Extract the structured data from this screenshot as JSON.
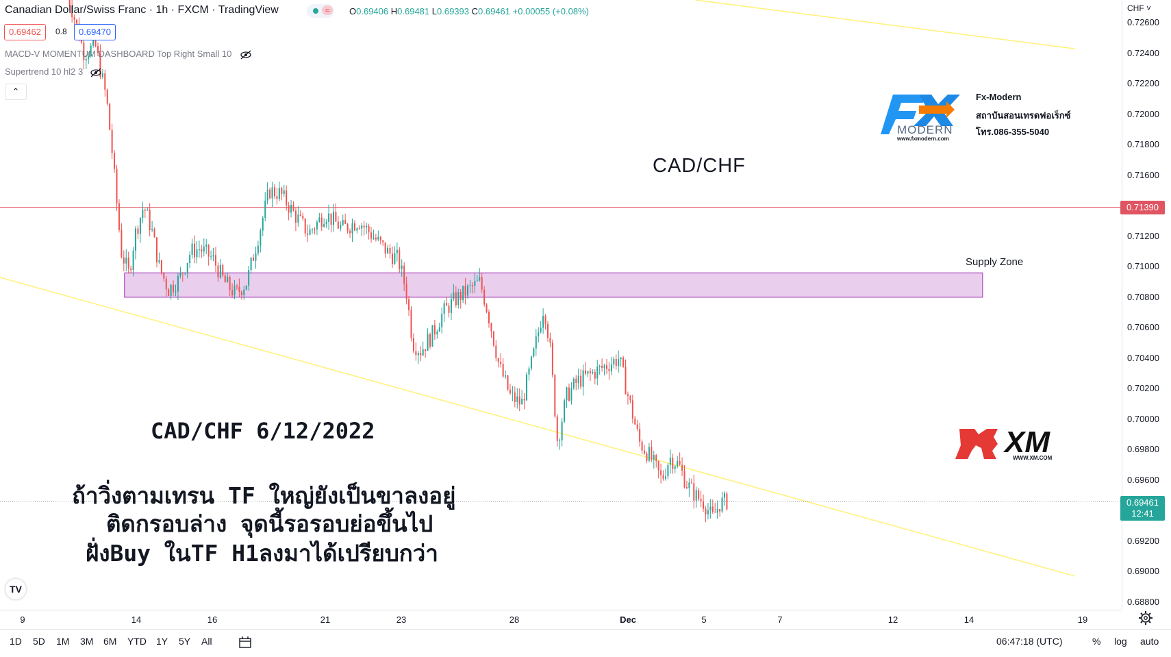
{
  "header": {
    "title": "Canadian Dollar/Swiss Franc · 1h · FXCM · TradingView",
    "ohlc": {
      "o_label": "O",
      "o": "0.69406",
      "h_label": "H",
      "h": "0.69481",
      "l_label": "L",
      "l": "0.69393",
      "c_label": "C",
      "c": "0.69461",
      "change": "+0.00055 (+0.08%)"
    },
    "sell_price": "0.69462",
    "spread": "0.8",
    "buy_price": "0.69470",
    "indicators": [
      "MACD-V MOMENTUM DASHBOARD Top Right Small 10",
      "Supertrend 10 hl2 3"
    ],
    "collapse_icon": "chevron-up-icon"
  },
  "price_axis": {
    "currency": "CHF",
    "labels": [
      "0.72600",
      "0.72400",
      "0.72200",
      "0.72000",
      "0.71800",
      "0.71600",
      "0.71200",
      "0.71000",
      "0.70800",
      "0.70600",
      "0.70400",
      "0.70200",
      "0.70000",
      "0.69800",
      "0.69600",
      "0.69200",
      "0.69000",
      "0.68800"
    ],
    "level_tag": "0.71390",
    "last_price_tag": "0.69461",
    "countdown": "12:41"
  },
  "time_axis": {
    "labels": [
      "9",
      "14",
      "16",
      "21",
      "23",
      "28",
      "Dec",
      "5",
      "7",
      "12",
      "14",
      "19"
    ]
  },
  "bottom_bar": {
    "ranges": [
      "1D",
      "5D",
      "1M",
      "3M",
      "6M",
      "YTD",
      "1Y",
      "5Y",
      "All"
    ],
    "clock": "06:47:18 (UTC)",
    "percent": "%",
    "log": "log",
    "auto": "auto"
  },
  "chart_data": {
    "type": "candlestick",
    "title": "CAD/CHF",
    "symbol": "CAD/CHF",
    "timeframe": "1h",
    "ylim": [
      0.6875,
      0.7275
    ],
    "horizontal_level": 0.7139,
    "supply_zone": {
      "label": "Supply Zone",
      "low": 0.708,
      "high": 0.7096
    },
    "trend_line": {
      "from": [
        0,
        0.7093
      ],
      "to": [
        1,
        0.6897
      ]
    },
    "upper_channel": {
      "from": [
        0,
        0.7285
      ],
      "to": [
        1,
        0.7243
      ]
    },
    "price_path": [
      [
        0.06,
        0.728
      ],
      [
        0.075,
        0.724
      ],
      [
        0.085,
        0.7245
      ],
      [
        0.095,
        0.721
      ],
      [
        0.1,
        0.7175
      ],
      [
        0.108,
        0.711
      ],
      [
        0.115,
        0.7095
      ],
      [
        0.12,
        0.712
      ],
      [
        0.128,
        0.714
      ],
      [
        0.135,
        0.7125
      ],
      [
        0.142,
        0.71
      ],
      [
        0.15,
        0.7085
      ],
      [
        0.16,
        0.7092
      ],
      [
        0.17,
        0.711
      ],
      [
        0.178,
        0.7112
      ],
      [
        0.19,
        0.7105
      ],
      [
        0.2,
        0.709
      ],
      [
        0.21,
        0.7082
      ],
      [
        0.22,
        0.709
      ],
      [
        0.232,
        0.7125
      ],
      [
        0.24,
        0.715
      ],
      [
        0.25,
        0.7148
      ],
      [
        0.262,
        0.7135
      ],
      [
        0.275,
        0.7122
      ],
      [
        0.29,
        0.7135
      ],
      [
        0.305,
        0.7125
      ],
      [
        0.32,
        0.713
      ],
      [
        0.335,
        0.7118
      ],
      [
        0.345,
        0.711
      ],
      [
        0.355,
        0.7105
      ],
      [
        0.362,
        0.7085
      ],
      [
        0.368,
        0.705
      ],
      [
        0.375,
        0.7045
      ],
      [
        0.385,
        0.7055
      ],
      [
        0.395,
        0.707
      ],
      [
        0.405,
        0.7078
      ],
      [
        0.418,
        0.7085
      ],
      [
        0.428,
        0.709
      ],
      [
        0.435,
        0.707
      ],
      [
        0.445,
        0.7035
      ],
      [
        0.455,
        0.7015
      ],
      [
        0.465,
        0.701
      ],
      [
        0.475,
        0.704
      ],
      [
        0.485,
        0.7075
      ],
      [
        0.49,
        0.705
      ],
      [
        0.497,
        0.6985
      ],
      [
        0.505,
        0.7015
      ],
      [
        0.515,
        0.7025
      ],
      [
        0.528,
        0.703
      ],
      [
        0.54,
        0.7035
      ],
      [
        0.552,
        0.704
      ],
      [
        0.56,
        0.7015
      ],
      [
        0.57,
        0.6985
      ],
      [
        0.58,
        0.6975
      ],
      [
        0.59,
        0.696
      ],
      [
        0.597,
        0.6975
      ],
      [
        0.605,
        0.697
      ],
      [
        0.612,
        0.6958
      ],
      [
        0.62,
        0.695
      ],
      [
        0.628,
        0.6945
      ],
      [
        0.635,
        0.6935
      ],
      [
        0.642,
        0.6945
      ],
      [
        0.648,
        0.6946
      ]
    ]
  },
  "annotations": {
    "date_title": "CAD/CHF 6/12/2022",
    "lines": [
      "ถ้าวิ่งตามเทรน TF ใหญ่ยังเป็นขาลงอยู่",
      "ติดกรอบล่าง จุดนี้รอรอบย่อขึ้นไป",
      "ฝั่งBuy ในTF H1ลงมาได้เปรียบกว่า"
    ]
  },
  "branding": {
    "fx_logo_text": "MODERN",
    "fx_url": "www.fxmodern.com",
    "fx_lines": [
      "Fx-Modern",
      "สถาบันสอนเทรดฟอเร็กซ์",
      "โทร.086-355-5040"
    ],
    "xm_text": "XM",
    "xm_url": "WWW.XM.COM",
    "tv_logo": "TV",
    "colors": {
      "up": "#26a69a",
      "down": "#ef5350",
      "zone": "#e1bee7",
      "level": "#e05562",
      "trend": "#fff176"
    }
  }
}
